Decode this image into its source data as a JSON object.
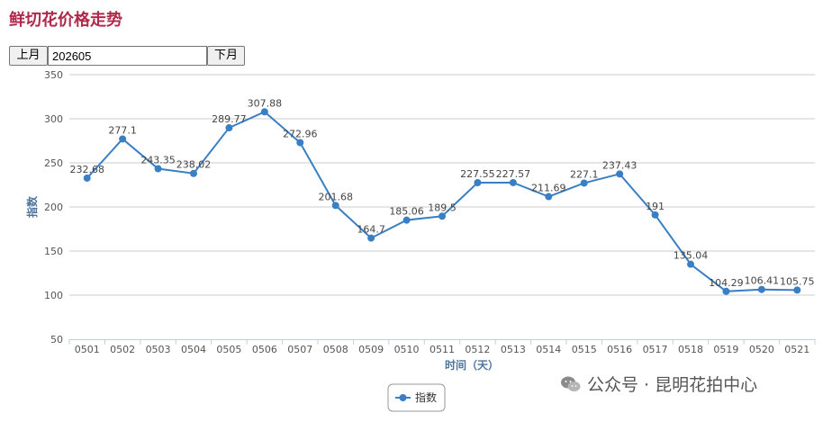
{
  "title": "鲜切花价格走势",
  "controls": {
    "prev_label": "上月",
    "month_value": "202605",
    "next_label": "下月"
  },
  "chart_data": {
    "type": "line",
    "title": "",
    "xlabel": "时间（天）",
    "ylabel": "指数",
    "categories": [
      "0501",
      "0502",
      "0503",
      "0504",
      "0505",
      "0506",
      "0507",
      "0508",
      "0509",
      "0510",
      "0511",
      "0512",
      "0513",
      "0514",
      "0515",
      "0516",
      "0517",
      "0518",
      "0519",
      "0520",
      "0521"
    ],
    "series": [
      {
        "name": "指数",
        "color": "#3a7fc4",
        "values": [
          232.68,
          277.1,
          243.35,
          238.02,
          289.77,
          307.88,
          272.96,
          201.68,
          164.7,
          185.06,
          189.5,
          227.55,
          227.57,
          211.69,
          227.1,
          237.43,
          191,
          135.04,
          104.29,
          106.41,
          105.75
        ]
      }
    ],
    "ylim": [
      50,
      350
    ],
    "yticks": [
      50,
      100,
      150,
      200,
      250,
      300,
      350
    ],
    "grid": true,
    "legend": "bottom-center"
  },
  "watermark": {
    "text": "公众号 · 昆明花拍中心",
    "icon": "wechat-icon"
  }
}
